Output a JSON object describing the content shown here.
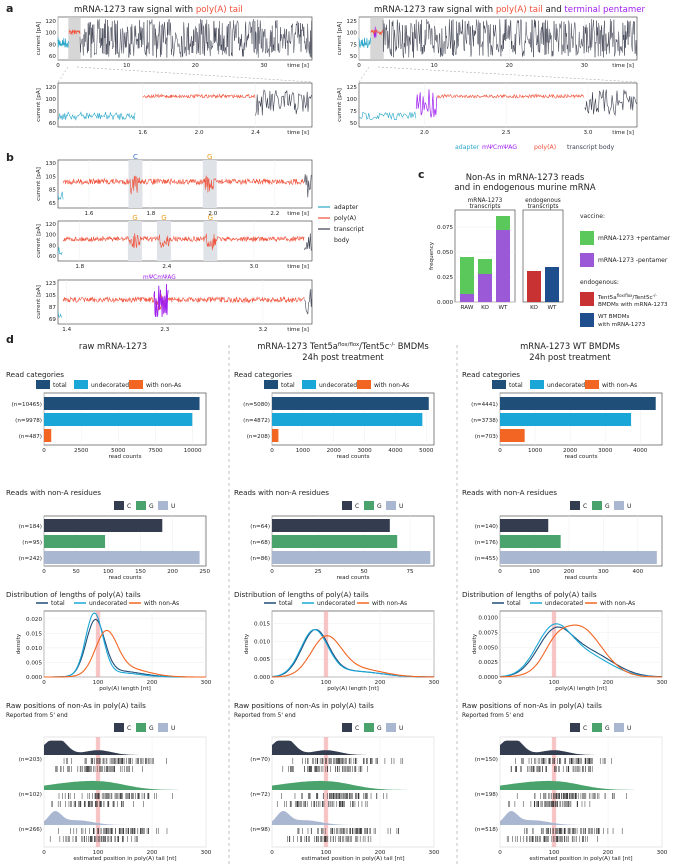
{
  "colors": {
    "adapter": "#2aa7c9",
    "polyA": "#f0513a",
    "body": "#3b3f4f",
    "mod": "#a020f0",
    "total": "#1f4e79",
    "undecorated": "#1aa7d8",
    "nonA": "#f26522",
    "C": "#343c50",
    "G": "#4aa36c",
    "U": "#aab7d1",
    "vaccine_plus": "#5ac85a",
    "vaccine_minus": "#9b59d8",
    "ko": "#c83232",
    "wt": "#1f4e8c",
    "hl": "#f4a0a0"
  },
  "panel_a": {
    "letter": "a",
    "left": {
      "title_prefix": "mRNA-1273 raw signal with ",
      "title_red": "poly(A) tail",
      "top_yticks": [
        "120",
        "100",
        "80",
        "60"
      ],
      "top_xticks": [
        "0",
        "10",
        "20",
        "30"
      ],
      "top_xticks_v": [
        0,
        10,
        20,
        30
      ],
      "top_xmax": 37,
      "zoom_yticks": [
        "120",
        "100",
        "80",
        "60"
      ],
      "zoom_xticks": [
        "1.6",
        "2.0",
        "2.4"
      ],
      "zoom_xticks_v": [
        1.6,
        2.0,
        2.4
      ],
      "zoom_range": [
        1.0,
        2.8
      ]
    },
    "right": {
      "title_prefix": "mRNA-1273 raw signal with ",
      "title_red": "poly(A) tail",
      "title_mid": " and ",
      "title_purple": "terminal pentamer",
      "top_yticks": [
        "125",
        "100",
        "75",
        "50"
      ],
      "top_xticks": [
        "0",
        "10",
        "20",
        "30"
      ],
      "top_xticks_v": [
        0,
        10,
        20,
        30
      ],
      "top_xmax": 37,
      "zoom_yticks": [
        "125",
        "100",
        "75",
        "50"
      ],
      "zoom_xticks": [
        "2.0",
        "2.5",
        "3.0"
      ],
      "zoom_xticks_v": [
        2.0,
        2.5,
        3.0
      ],
      "zoom_range": [
        1.6,
        3.3
      ]
    },
    "ylabel": "current [pA]",
    "xlabel": "time [s]",
    "legend": [
      "adapter",
      "mΨCmΨAG",
      "poly(A)",
      "transcript body"
    ]
  },
  "panel_b": {
    "letter": "b",
    "ylabel": "current [pA]",
    "xlabel": "time [s]",
    "rows": [
      {
        "yticks": [
          "130",
          "105",
          "85",
          "65"
        ],
        "xticks": [
          "1.6",
          "1.8",
          "2.0",
          "2.2"
        ],
        "xticks_v": [
          1.6,
          1.8,
          2.0,
          2.2
        ],
        "range": [
          1.5,
          2.32
        ],
        "marks": [
          {
            "label": "C",
            "t": 1.75,
            "color": "C"
          },
          {
            "label": "G",
            "t": 1.99,
            "color": "G"
          }
        ]
      },
      {
        "yticks": [
          "120",
          "100",
          "80",
          "60"
        ],
        "xticks": [
          "1.8",
          "2.4",
          "3.0"
        ],
        "xticks_v": [
          1.8,
          2.4,
          3.0
        ],
        "range": [
          1.65,
          3.4
        ],
        "marks": [
          {
            "label": "G",
            "t": 2.18,
            "color": "G"
          },
          {
            "label": "G",
            "t": 2.38,
            "color": "G"
          },
          {
            "label": "G",
            "t": 2.7,
            "color": "G"
          }
        ]
      },
      {
        "yticks": [
          "123",
          "105",
          "87",
          "69"
        ],
        "xticks": [
          "1.4",
          "2.3",
          "3.2"
        ],
        "xticks_v": [
          1.4,
          2.3,
          3.2
        ],
        "range": [
          1.32,
          3.65
        ],
        "marks": [
          {
            "label": "mΨCmΨAG",
            "t": 2.25,
            "color": "mod"
          }
        ]
      }
    ],
    "legend": [
      "adapter",
      "poly(A)",
      "transcript body"
    ]
  },
  "panel_c": {
    "letter": "c",
    "title1": "Non-As in mRNA-1273 reads",
    "title2": "and in endogenous murine mRNA",
    "group1": [
      "mRNA-1273",
      "transcripts"
    ],
    "group2": [
      "endogenous",
      "transcripts"
    ],
    "ylabel": "frequency",
    "yticks": [
      "0.000",
      "0.025",
      "0.050",
      "0.075"
    ],
    "yticks_v": [
      0,
      0.025,
      0.05,
      0.075
    ],
    "ymax": 0.092,
    "legend_vaccine_title": "vaccine:",
    "legend_vaccine": [
      "mRNA-1273 +pentamer",
      "mRNA-1273 -pentamer"
    ],
    "legend_endo_title": "endogenous:",
    "legend_endo": [
      "Tent5a",
      "flox/flox",
      "/Tent5c",
      "-/-",
      "BMDMs with mRNA-1273",
      "WT BMDMs",
      "with mRNA-1273"
    ]
  },
  "chart_data": [
    {
      "type": "bar",
      "title": "Non-As in mRNA-1273 reads and in endogenous murine mRNA",
      "categories": [
        "RAW",
        "KO",
        "WT"
      ],
      "series": [
        {
          "name": "mRNA-1273 -pentamer",
          "values": [
            0.008,
            0.028,
            0.072
          ]
        },
        {
          "name": "mRNA-1273 +pentamer",
          "values": [
            0.037,
            0.015,
            0.014
          ]
        }
      ],
      "ylabel": "frequency",
      "ylim": [
        0,
        0.092
      ]
    },
    {
      "type": "bar",
      "title": "endogenous transcripts",
      "categories": [
        "KO",
        "WT"
      ],
      "series": [
        {
          "name": "endogenous",
          "values": [
            0.031,
            0.035
          ]
        }
      ],
      "ylim": [
        0,
        0.092
      ]
    },
    {
      "type": "bar",
      "title": "Read categories - raw mRNA-1273",
      "categories": [
        "total",
        "undecorated",
        "with non-As"
      ],
      "values": [
        10465,
        9978,
        487
      ],
      "xlabel": "read counts"
    },
    {
      "type": "bar",
      "title": "Read categories - Tent5a/Tent5c BMDMs",
      "categories": [
        "total",
        "undecorated",
        "with non-As"
      ],
      "values": [
        5080,
        4872,
        208
      ],
      "xlabel": "read counts"
    },
    {
      "type": "bar",
      "title": "Read categories - WT BMDMs",
      "categories": [
        "total",
        "undecorated",
        "with non-As"
      ],
      "values": [
        4441,
        3738,
        703
      ],
      "xlabel": "read counts"
    },
    {
      "type": "bar",
      "title": "Reads with non-A residues - raw",
      "categories": [
        "C",
        "G",
        "U"
      ],
      "values": [
        184,
        95,
        242
      ]
    },
    {
      "type": "bar",
      "title": "Reads with non-A residues - Tent5a/Tent5c",
      "categories": [
        "C",
        "G",
        "U"
      ],
      "values": [
        64,
        68,
        86
      ]
    },
    {
      "type": "bar",
      "title": "Reads with non-A residues - WT",
      "categories": [
        "C",
        "G",
        "U"
      ],
      "values": [
        140,
        176,
        455
      ]
    }
  ],
  "panel_d": {
    "letter": "d",
    "columns": [
      {
        "title1": "raw mRNA-1273",
        "title2": "",
        "title2_sup1": "",
        "title2_mid": "",
        "title2_sup2": "",
        "title2_end": "",
        "title3": "",
        "rc": {
          "labels": [
            "(n=10465)",
            "(n=9978)",
            "(n=487)"
          ],
          "values": [
            10465,
            9978,
            487
          ],
          "xticks": [
            "0",
            "2500",
            "5000",
            "7500",
            "10000"
          ],
          "xticks_v": [
            0,
            2500,
            5000,
            7500,
            10000
          ],
          "xmax": 10900
        },
        "na": {
          "labels": [
            "(n=184)",
            "(n=95)",
            "(n=242)"
          ],
          "values": [
            184,
            95,
            242
          ],
          "xticks": [
            "0",
            "50",
            "100",
            "150",
            "200",
            "250"
          ],
          "xticks_v": [
            0,
            50,
            100,
            150,
            200,
            250
          ],
          "xmax": 252
        },
        "dist": {
          "yticks": [
            "0.000",
            "0.005",
            "0.010",
            "0.015",
            "0.020"
          ],
          "yticks_v": [
            0,
            0.005,
            0.01,
            0.015,
            0.02
          ],
          "ymax": 0.022,
          "total": {
            "mu": 95,
            "sd": 17,
            "w": 0.8,
            "mu2": 140,
            "sd2": 40
          },
          "und": {
            "mu": 93,
            "sd": 16,
            "w": 0.85,
            "mu2": 135,
            "sd2": 40
          },
          "non": {
            "mu": 115,
            "sd": 20,
            "w": 0.7,
            "mu2": 150,
            "sd2": 40
          }
        },
        "pos": {
          "labels": [
            "(n=203)",
            "(n=102)",
            "(n=266)"
          ]
        }
      },
      {
        "title1": "mRNA-1273 Tent5a",
        "title2": "",
        "title2_sup1": "flox/flox",
        "title2_mid": "/Tent5c",
        "title2_sup2": "-/-",
        "title2_end": " BMDMs",
        "title3": "24h post treatment",
        "rc": {
          "labels": [
            "(n=5080)",
            "(n=4872)",
            "(n=208)"
          ],
          "values": [
            5080,
            4872,
            208
          ],
          "xticks": [
            "0",
            "1000",
            "2000",
            "3000",
            "4000",
            "5000"
          ],
          "xticks_v": [
            0,
            1000,
            2000,
            3000,
            4000,
            5000
          ],
          "xmax": 5250
        },
        "na": {
          "labels": [
            "(n=64)",
            "(n=68)",
            "(n=86)"
          ],
          "values": [
            64,
            68,
            86
          ],
          "xticks": [
            "0",
            "25",
            "50",
            "75"
          ],
          "xticks_v": [
            0,
            25,
            50,
            75
          ],
          "xmax": 88
        },
        "dist": {
          "yticks": [
            "0.000",
            "0.005",
            "0.010",
            "0.015"
          ],
          "yticks_v": [
            0,
            0.005,
            0.01,
            0.015
          ],
          "ymax": 0.018,
          "total": {
            "mu": 80,
            "sd": 25,
            "w": 0.8,
            "mu2": 150,
            "sd2": 50
          },
          "und": {
            "mu": 78,
            "sd": 25,
            "w": 0.8,
            "mu2": 150,
            "sd2": 50
          },
          "non": {
            "mu": 100,
            "sd": 28,
            "w": 0.75,
            "mu2": 160,
            "sd2": 45
          }
        },
        "pos": {
          "labels": [
            "(n=70)",
            "(n=72)",
            "(n=98)"
          ]
        }
      },
      {
        "title1": "mRNA-1273 WT BMDMs",
        "title2": "24h post treatment",
        "title2_sup1": "",
        "title2_mid": "",
        "title2_sup2": "",
        "title2_end": "",
        "title3": "",
        "rc": {
          "labels": [
            "(n=4441)",
            "(n=3738)",
            "(n=703)"
          ],
          "values": [
            4441,
            3738,
            703
          ],
          "xticks": [
            "0",
            "1000",
            "2000",
            "3000",
            "4000"
          ],
          "xticks_v": [
            0,
            1000,
            2000,
            3000,
            4000
          ],
          "xmax": 4620
        },
        "na": {
          "labels": [
            "(n=140)",
            "(n=176)",
            "(n=455)"
          ],
          "values": [
            140,
            176,
            455
          ],
          "xticks": [
            "0",
            "100",
            "200",
            "300",
            "400"
          ],
          "xticks_v": [
            0,
            100,
            200,
            300,
            400
          ],
          "xmax": 470
        },
        "dist": {
          "yticks": [
            "0.0000",
            "0.0025",
            "0.0050",
            "0.0075",
            "0.0100"
          ],
          "yticks_v": [
            0,
            0.0025,
            0.005,
            0.0075,
            0.01
          ],
          "ymax": 0.0108,
          "total": {
            "mu": 100,
            "sd": 32,
            "w": 0.55,
            "mu2": 165,
            "sd2": 45
          },
          "und": {
            "mu": 98,
            "sd": 32,
            "w": 0.6,
            "mu2": 160,
            "sd2": 45
          },
          "non": {
            "mu": 145,
            "sd": 42,
            "w": 0.9,
            "mu2": 100,
            "sd2": 20
          }
        },
        "pos": {
          "labels": [
            "(n=150)",
            "(n=198)",
            "(n=518)"
          ]
        }
      }
    ],
    "rc_title": "Read categories",
    "rc_legend": [
      "total",
      "undecorated",
      "with non-As"
    ],
    "rc_xlabel": "read counts",
    "na_title": "Reads with non-A residues",
    "na_legend": [
      "C",
      "G",
      "U"
    ],
    "na_xlabel": "read counts",
    "dist_title": "Distribution of lengths of poly(A) tails",
    "dist_legend": [
      "total",
      "undecorated",
      "with non-As"
    ],
    "dist_ylabel": "density",
    "dist_xlabel": "poly(A) length [nt]",
    "dist_xticks": [
      "0",
      "100",
      "200",
      "300"
    ],
    "pos_title": "Raw positions of non-As in poly(A) tails",
    "pos_sub": "Reported from 5' end",
    "pos_legend": [
      "C",
      "G",
      "U"
    ],
    "pos_xlabel": "estimated position in poly(A) tail [nt]",
    "pos_xticks": [
      "0",
      "100",
      "200",
      "300"
    ]
  }
}
